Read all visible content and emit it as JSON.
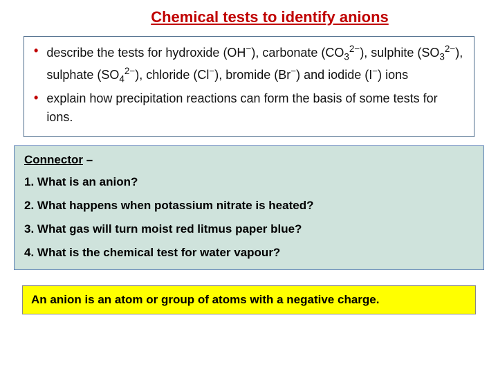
{
  "title": "Chemical tests to identify anions",
  "objectives": {
    "box_border_color": "#4a6a8a",
    "bullet_color": "#c00000",
    "text_color": "#111111",
    "font_size_pt": 18,
    "items": [
      {
        "prefix": "describe the tests for hydroxide (OH",
        "ion1_sup": "−",
        "seg1": "), carbonate (CO",
        "ion2_sub": "3",
        "ion2_sup": "2−",
        "seg2": "), sulphite (SO",
        "ion3_sub": "3",
        "ion3_sup": "2−",
        "seg3": "), sulphate (SO",
        "ion4_sub": "4",
        "ion4_sup": "2−",
        "seg4": "), chloride (Cl",
        "ion5_sup": "−",
        "seg5": "), bromide (Br",
        "ion6_sup": "−",
        "seg6": ") and iodide (I",
        "ion7_sup": "−",
        "seg7": ") ions"
      },
      {
        "text": "explain how precipitation reactions can form the basis of some tests for ions."
      }
    ]
  },
  "connector": {
    "heading_label": "Connector",
    "heading_suffix": " –",
    "background_color": "#cfe3dc",
    "border_color": "#5a7fb5",
    "font_size_pt": 17,
    "questions": [
      "1.  What is an anion?",
      "2.  What happens when potassium nitrate is heated?",
      "3.  What gas will turn moist red litmus paper blue?",
      "4.  What is the chemical test for water vapour?"
    ]
  },
  "answer": {
    "text": "An anion is an atom or group of atoms with a negative charge.",
    "background_color": "#ffff00",
    "border_color": "#888888",
    "font_size_pt": 17
  },
  "title_style": {
    "color": "#c00000",
    "font_size_pt": 22,
    "underline": true
  }
}
